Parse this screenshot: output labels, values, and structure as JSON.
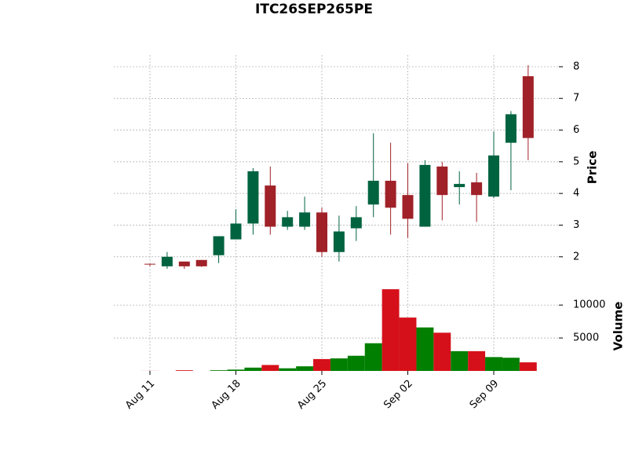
{
  "chart_data": {
    "type": "candlestick",
    "title": "ITC26SEP265PE",
    "ylabel": "Price",
    "categories": [
      "Aug 11",
      null,
      null,
      null,
      null,
      "Aug 18",
      null,
      null,
      null,
      null,
      "Aug 25",
      null,
      null,
      null,
      null,
      "Sep 02",
      null,
      null,
      null,
      null,
      "Sep 09",
      null,
      null
    ],
    "open": [
      1.78,
      1.7,
      1.85,
      1.9,
      2.05,
      2.55,
      3.05,
      4.25,
      2.95,
      2.95,
      3.4,
      2.15,
      2.9,
      3.65,
      4.4,
      3.95,
      2.95,
      4.85,
      4.2,
      4.35,
      3.9,
      5.6,
      7.7
    ],
    "high": [
      1.78,
      2.15,
      1.85,
      1.9,
      2.65,
      3.5,
      4.8,
      4.85,
      3.45,
      3.9,
      3.55,
      3.3,
      3.6,
      5.9,
      5.6,
      4.95,
      5.05,
      5.0,
      4.7,
      4.65,
      5.95,
      6.6,
      8.05
    ],
    "low": [
      1.7,
      1.62,
      1.62,
      1.68,
      1.8,
      2.55,
      2.7,
      2.7,
      2.85,
      2.85,
      2.0,
      1.85,
      2.5,
      3.25,
      2.7,
      2.6,
      2.95,
      3.15,
      3.65,
      3.1,
      3.85,
      4.1,
      5.05
    ],
    "close": [
      1.76,
      2.0,
      1.7,
      1.7,
      2.65,
      3.05,
      4.7,
      2.95,
      3.25,
      3.4,
      2.15,
      2.8,
      3.25,
      4.4,
      3.55,
      3.2,
      4.9,
      3.95,
      4.3,
      3.95,
      5.2,
      6.5,
      5.75
    ],
    "up_color": "#006340",
    "down_color": "#a02128",
    "ylim": [
      1.3,
      8.37
    ],
    "yticks": [
      2,
      3,
      4,
      5,
      6,
      7,
      8
    ],
    "grid": true,
    "volume": {
      "ylabel": "Volume",
      "values": [
        10,
        0,
        100,
        0,
        100,
        200,
        500,
        900,
        400,
        700,
        1800,
        1900,
        2300,
        4200,
        12400,
        8100,
        6600,
        5800,
        3000,
        3000,
        2100,
        2000,
        1300
      ],
      "up_color": "#007f00",
      "down_color": "#d5101a",
      "ylim": [
        0,
        13600
      ],
      "yticks": [
        5000,
        10000
      ]
    }
  }
}
